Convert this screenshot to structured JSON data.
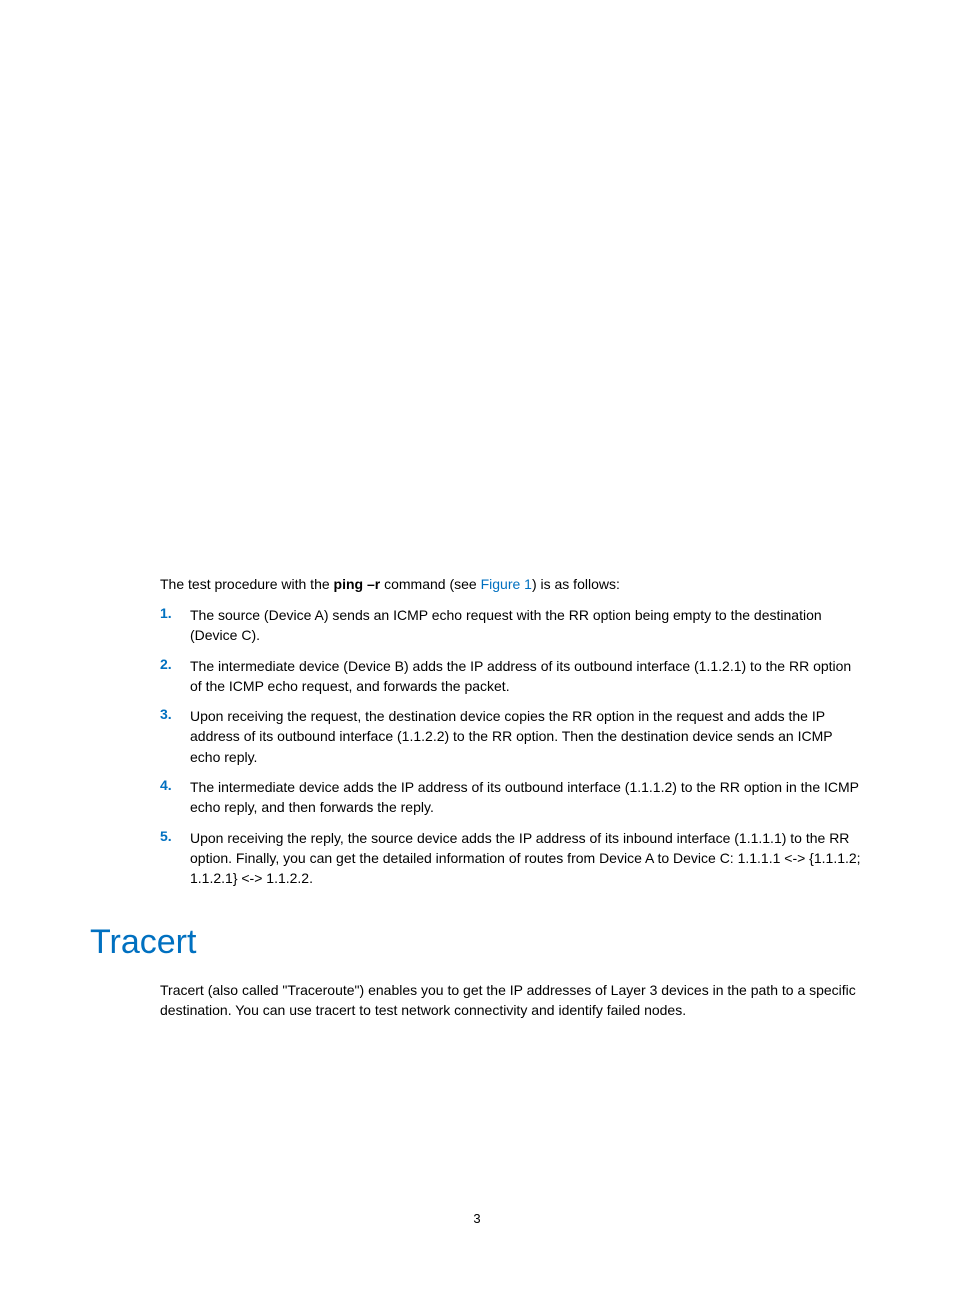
{
  "colors": {
    "accent": "#0070c0",
    "text": "#000000",
    "background": "#ffffff"
  },
  "typography": {
    "body_fontsize": 14,
    "heading_fontsize": 34,
    "heading_weight": "normal",
    "heading_color": "#0070c0",
    "list_number_color": "#0070c0",
    "list_number_weight": "bold"
  },
  "intro": {
    "prefix": "The test procedure with the ",
    "bold": "ping –r",
    "mid": " command (see ",
    "link": "Figure 1",
    "suffix": ") is as follows:"
  },
  "steps": [
    {
      "num": "1.",
      "text": "The source (Device A) sends an ICMP echo request with the RR option being empty to the destination (Device C)."
    },
    {
      "num": "2.",
      "text": "The intermediate device (Device B) adds the IP address  of its outbound interface (1.1.2.1) to the RR option of the ICMP echo request, and forwards the packet."
    },
    {
      "num": "3.",
      "text": "Upon receiving the request, the destination device copies the RR option in the request and adds the IP address of its outbound interface (1.1.2.2) to the RR option. Then the destination device sends an ICMP echo reply."
    },
    {
      "num": "4.",
      "text": "The intermediate device adds the IP address of its outbound interface (1.1.1.2) to the RR option in the ICMP echo reply, and then forwards the reply."
    },
    {
      "num": "5.",
      "text": "Upon receiving the reply, the source device adds the IP address of its inbound interface (1.1.1.1) to the RR option. Finally, you can get the detailed information of routes from Device A to Device C: 1.1.1.1 <-> {1.1.1.2; 1.1.2.1} <-> 1.1.2.2."
    }
  ],
  "section": {
    "heading": "Tracert",
    "para": "Tracert (also called \"Traceroute\") enables you to get the IP addresses of Layer 3 devices in the path to a specific destination. You can use tracert to test network connectivity and identify failed nodes."
  },
  "page_number": "3"
}
